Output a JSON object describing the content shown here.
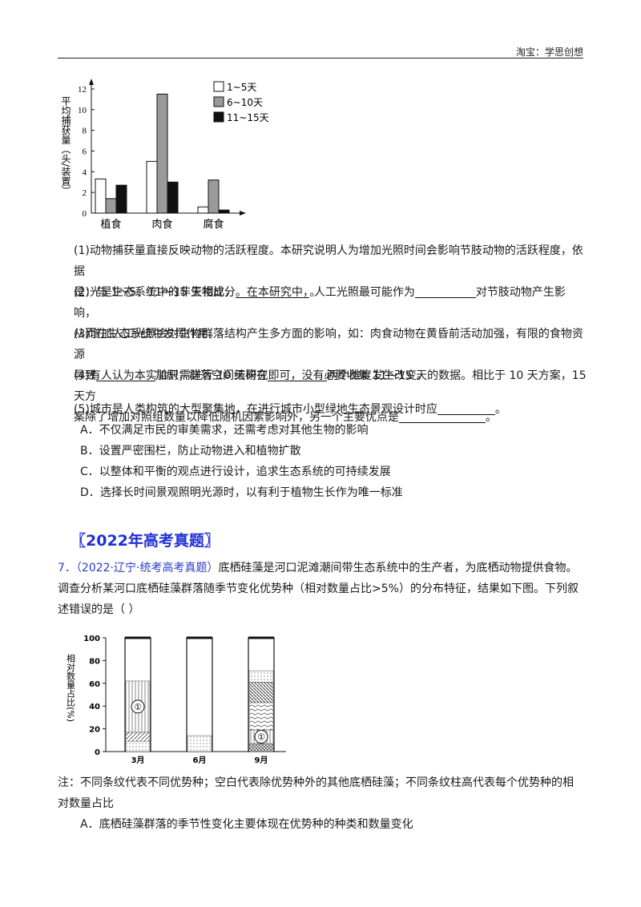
{
  "header": {
    "text": "淘宝：学思创想"
  },
  "chart1": {
    "ylabel": "平均捕获量（头/装置）",
    "categories": [
      "植食",
      "肉食",
      "腐食"
    ],
    "yticks": [
      "0",
      "2",
      "4",
      "6",
      "8",
      "10",
      "12"
    ],
    "legend": [
      "1~5天",
      "6~10天",
      "11~15天"
    ],
    "colors": {
      "s1": "#ffffff",
      "s2": "#9a9a9a",
      "s3": "#111111"
    }
  },
  "chart_data": [
    {
      "type": "bar",
      "categories": [
        "植食",
        "肉食",
        "腐食"
      ],
      "series": [
        {
          "name": "1~5天",
          "values": [
            3.3,
            5.0,
            0.6
          ]
        },
        {
          "name": "6~10天",
          "values": [
            1.4,
            11.5,
            3.2
          ]
        },
        {
          "name": "11~15天",
          "values": [
            2.7,
            3.0,
            0.3
          ]
        }
      ],
      "ylabel": "平均捕获量（头/装置）",
      "ylim": [
        0,
        12
      ],
      "legend": "top-right"
    },
    {
      "type": "bar",
      "categories": [
        "3月",
        "6月",
        "9月"
      ],
      "ylabel": "相对数量占比(%)",
      "ylim": [
        0,
        100
      ],
      "segments": [
        [
          {
            "pattern": "dots",
            "from": 0,
            "to": 9
          },
          {
            "pattern": "hatch",
            "from": 9,
            "to": 17
          },
          {
            "pattern": "vertical",
            "from": 17,
            "to": 62,
            "label": "①"
          }
        ],
        [
          {
            "pattern": "dots",
            "from": 0,
            "to": 14
          }
        ],
        [
          {
            "pattern": "cross",
            "from": 0,
            "to": 7
          },
          {
            "pattern": "vertical",
            "from": 7,
            "to": 19,
            "label": "①"
          },
          {
            "pattern": "wave",
            "from": 19,
            "to": 43
          },
          {
            "pattern": "diag",
            "from": 43,
            "to": 61
          },
          {
            "pattern": "dots",
            "from": 61,
            "to": 71
          }
        ]
      ],
      "label": "①"
    }
  ],
  "q1": {
    "a": "(1)动物捕获量直接反映动物的活跃程度。本研究说明人为增加光照时间会影响节肢动物的活跃程度，依据",
    "b": "是：与 1～5、11～15 天相比，",
    "c": "。"
  },
  "q2": {
    "a": "(2)光是生态系统中的非生物成分。在本研究中，人工光照最可能作为",
    "b": "对节肢动物产生影响，",
    "c": "从而在生态系统中发挥作用。"
  },
  "q3": {
    "a": "(3)增加人工光照会对生物群落结构产生多方面的影响，如：肉食动物在黄昏前活动加强，有限的食物资源",
    "b": "导致",
    "c": "加剧；群落空间结构在",
    "d": "两个维度发生改变。"
  },
  "q4": {
    "a": "(4)有人认为本实验只需进行 10 天研究即可，没有必要收集 11～15 天的数据。相比于 10 天方案，15 天方",
    "b": "案除了增加对照组数量以降低随机因素影响外，另一个主要优点是",
    "c": "。"
  },
  "q5": {
    "a": "(5)城市是人类构筑的大型聚集地，在进行城市小型绿地生态景观设计时应",
    "b": "。"
  },
  "options5": [
    "A．不仅满足市民的审美需求，还需考虑对其他生物的影响",
    "B．设置严密围栏，防止动物进入和植物扩散",
    "C．以整体和平衡的观点进行设计，追求生态系统的可持续发展",
    "D．选择长时间景观照明光源时，以有利于植物生长作为唯一标准"
  ],
  "section": {
    "title": "〖2022年高考真题〗"
  },
  "q7": {
    "num": "7．",
    "src": "（2022·辽宁·统考高考真题）",
    "a": "底栖硅藻是河口泥滩潮间带生态系统中的生产者，为底栖动物提供食物。",
    "b": "调查分析某河口底栖硅藻群落随季节变化优势种（相对数量占比>5%）的分布特征，结果如下图。下列叙",
    "c": "述错误的是（     ）"
  },
  "chart2": {
    "ylabel": "相对数量占比(%)",
    "categories": [
      "3月",
      "6月",
      "9月"
    ],
    "yticks": [
      "0",
      "20",
      "40",
      "60",
      "80",
      "100"
    ]
  },
  "note": {
    "a": "注：不同条纹代表不同优势种；空白代表除优势种外的其他底栖硅藻；不同条纹柱高代表每个优势种的相",
    "b": "对数量占比"
  },
  "option7a": "A．底栖硅藻群落的季节性变化主要体现在优势种的种类和数量变化"
}
